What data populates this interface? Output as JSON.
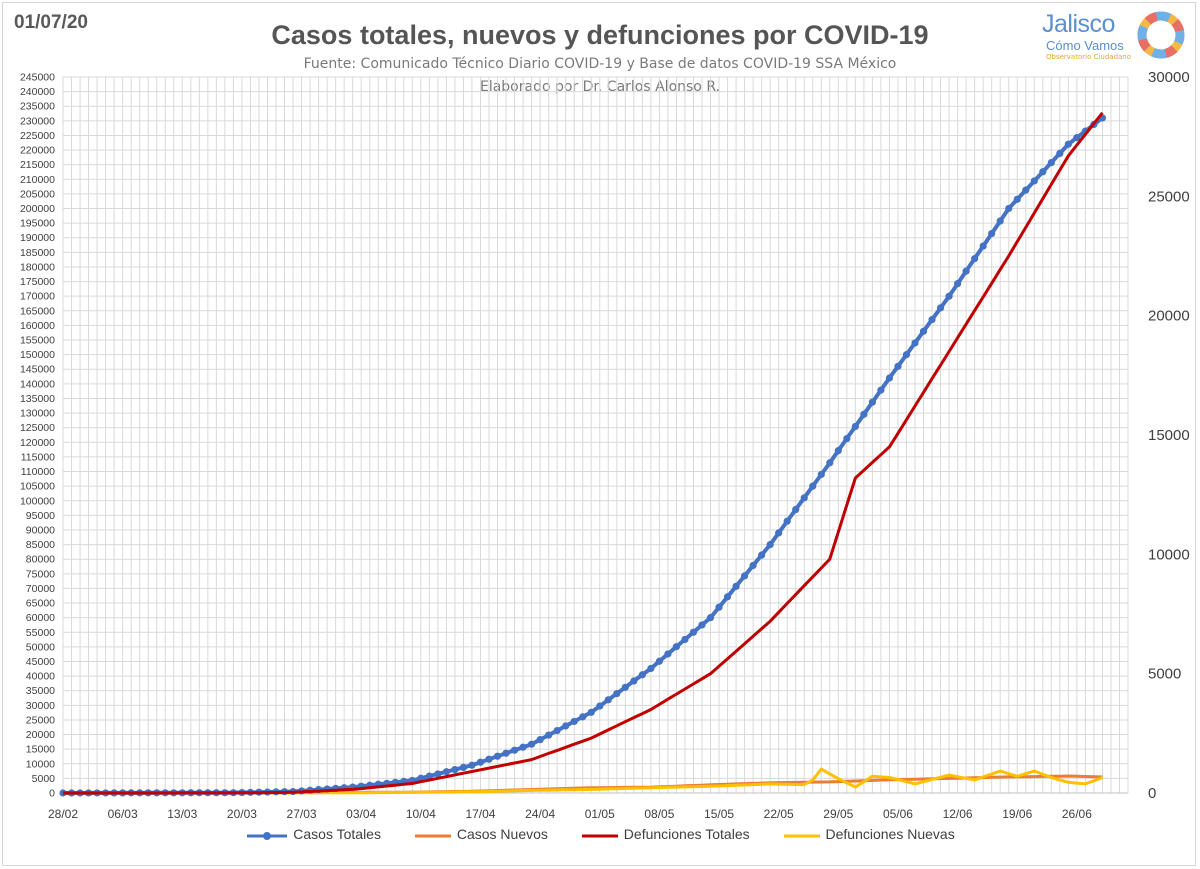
{
  "header": {
    "date": "01/07/20",
    "logo_name": "Jalisco",
    "logo_sub": "Cómo Vamos",
    "logo_tagline": "Observatorio Ciudadano"
  },
  "colors": {
    "casos_totales": "#4472c4",
    "casos_nuevos": "#ed7d31",
    "defunciones_totales": "#c00000",
    "defunciones_nuevas": "#ffc000",
    "grid": "#d9d9d9"
  },
  "chart_data": {
    "type": "line",
    "title": "Casos totales, nuevos y defunciones por COVID-19",
    "subtitle": "Fuente: Comunicado Técnico Diario COVID-19 y Base de datos COVID-19 SSA México",
    "subtitle2": "Elaborado por Dr. Carlos Alonso R.",
    "x_tick_labels": [
      "28/02",
      "06/03",
      "13/03",
      "20/03",
      "27/03",
      "03/04",
      "10/04",
      "17/04",
      "24/04",
      "01/05",
      "08/05",
      "15/05",
      "22/05",
      "29/05",
      "05/06",
      "12/06",
      "19/06",
      "26/06"
    ],
    "x_days": 125,
    "y_left_lim": [
      0,
      245000
    ],
    "y_left_step": 5000,
    "y_right_lim": [
      0,
      30000
    ],
    "y_right_ticks": [
      0,
      5000,
      10000,
      15000,
      20000,
      25000,
      30000
    ],
    "series": [
      {
        "name": "Casos Totales",
        "axis": "left",
        "marker": "circle",
        "key_days": [
          0,
          20,
          27,
          34,
          41,
          48,
          55,
          62,
          69,
          76,
          83,
          90,
          97,
          104,
          111,
          118,
          122
        ],
        "key_values": [
          0,
          100,
          500,
          2000,
          4300,
          9500,
          16700,
          27600,
          42600,
          60000,
          85000,
          113000,
          142000,
          170000,
          200000,
          222000,
          231000
        ]
      },
      {
        "name": "Casos Nuevos",
        "axis": "left",
        "marker": "none",
        "key_days": [
          0,
          20,
          34,
          41,
          48,
          55,
          62,
          69,
          76,
          83,
          90,
          97,
          104,
          111,
          118,
          122
        ],
        "key_values": [
          0,
          20,
          200,
          300,
          600,
          1200,
          1800,
          2000,
          2800,
          3500,
          3800,
          4500,
          5000,
          5500,
          5800,
          5500
        ]
      },
      {
        "name": "Defunciones Totales",
        "axis": "right",
        "marker": "none",
        "key_days": [
          0,
          20,
          27,
          34,
          41,
          48,
          55,
          62,
          69,
          76,
          83,
          90,
          93,
          97,
          104,
          111,
          118,
          122
        ],
        "key_values": [
          0,
          3,
          30,
          150,
          400,
          900,
          1400,
          2300,
          3500,
          5000,
          7200,
          9800,
          13200,
          14500,
          18500,
          22500,
          26700,
          28500
        ]
      },
      {
        "name": "Defunciones Nuevas",
        "axis": "right",
        "marker": "none",
        "key_days": [
          0,
          20,
          34,
          41,
          48,
          55,
          62,
          69,
          76,
          83,
          87,
          88,
          89,
          91,
          93,
          95,
          97,
          100,
          104,
          107,
          110,
          112,
          114,
          116,
          118,
          120,
          122
        ],
        "key_values": [
          0,
          2,
          10,
          25,
          50,
          110,
          150,
          220,
          280,
          380,
          350,
          550,
          1000,
          600,
          250,
          700,
          650,
          380,
          750,
          550,
          920,
          700,
          920,
          650,
          450,
          380,
          650
        ]
      }
    ]
  }
}
